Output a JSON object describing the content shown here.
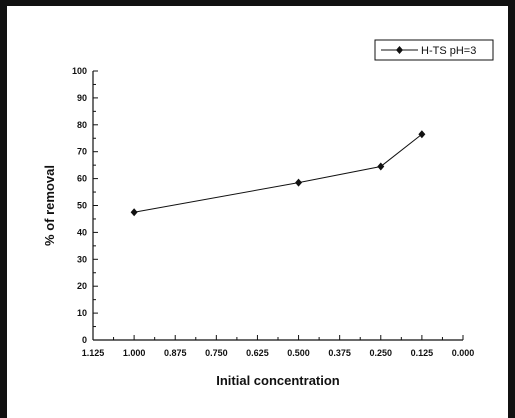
{
  "chart_data": {
    "type": "line",
    "x": [
      1.0,
      0.5,
      0.25,
      0.125
    ],
    "series": [
      {
        "name": "H-TS pH=3",
        "values": [
          47.5,
          58.5,
          64.5,
          76.5
        ],
        "color": "#111111",
        "marker": "diamond"
      }
    ],
    "xlabel": "Initial concentration",
    "ylabel": "% of removal",
    "xlim": [
      1.125,
      0.0
    ],
    "ylim": [
      0,
      100
    ],
    "x_reversed": true,
    "xticks": [
      "1.125",
      "1.000",
      "0.875",
      "0.750",
      "0.625",
      "0.500",
      "0.375",
      "0.250",
      "0.125",
      "0.000"
    ],
    "yticks": [
      "0",
      "10",
      "20",
      "30",
      "40",
      "50",
      "60",
      "70",
      "80",
      "90",
      "100"
    ],
    "grid": false,
    "legend": "top-right"
  },
  "frame": {
    "border_color": "#111111"
  }
}
